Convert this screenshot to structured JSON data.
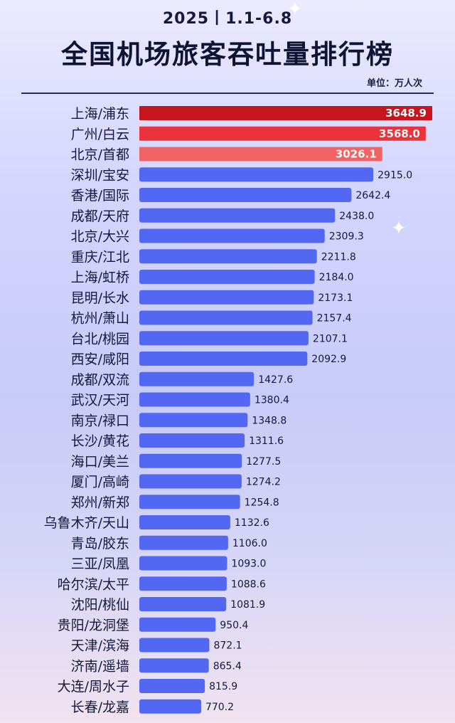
{
  "header": {
    "date_range": "2025丨1.1-6.8",
    "title": "全国机场旅客吞吐量排行榜",
    "unit": "单位：万人次"
  },
  "colors": {
    "top1": "#c4161c",
    "top2": "#e8343a",
    "top3": "#f26363",
    "bar": "#5268f2",
    "text": "#14183a"
  },
  "chart_data": {
    "type": "bar",
    "orientation": "horizontal",
    "title": "全国机场旅客吞吐量排行榜",
    "unit": "万人次",
    "categories": [
      "上海/浦东",
      "广州/白云",
      "北京/首都",
      "深圳/宝安",
      "香港/国际",
      "成都/天府",
      "北京/大兴",
      "重庆/江北",
      "上海/虹桥",
      "昆明/长水",
      "杭州/萧山",
      "台北/桃园",
      "西安/咸阳",
      "成都/双流",
      "武汉/天河",
      "南京/禄口",
      "长沙/黄花",
      "海口/美兰",
      "厦门/高崎",
      "郑州/新郑",
      "乌鲁木齐/天山",
      "青岛/胶东",
      "三亚/凤凰",
      "哈尔滨/太平",
      "沈阳/桃仙",
      "贵阳/龙洞堡",
      "天津/滨海",
      "济南/遥墙",
      "大连/周水子",
      "长春/龙嘉"
    ],
    "values": [
      3648.9,
      3568.0,
      3026.1,
      2915.0,
      2642.4,
      2438.0,
      2309.3,
      2211.8,
      2184.0,
      2173.1,
      2157.4,
      2107.1,
      2092.9,
      1427.6,
      1380.4,
      1348.8,
      1311.6,
      1277.5,
      1274.2,
      1254.8,
      1132.6,
      1106.0,
      1093.0,
      1088.6,
      1081.9,
      950.4,
      872.1,
      865.4,
      815.9,
      770.2
    ],
    "value_labels": [
      "3648.9",
      "3568.0",
      "3026.1",
      "2915.0",
      "2642.4",
      "2438.0",
      "2309.3",
      "2211.8",
      "2184.0",
      "2173.1",
      "2157.4",
      "2107.1",
      "2092.9",
      "1427.6",
      "1380.4",
      "1348.8",
      "1311.6",
      "1277.5",
      "1274.2",
      "1254.8",
      "1132.6",
      "1106.0",
      "1093.0",
      "1088.6",
      "1081.9",
      "950.4",
      "872.1",
      "865.4",
      "815.9",
      "770.2"
    ],
    "xlim": [
      0,
      3648.9
    ],
    "grid": false,
    "legend": "none"
  }
}
